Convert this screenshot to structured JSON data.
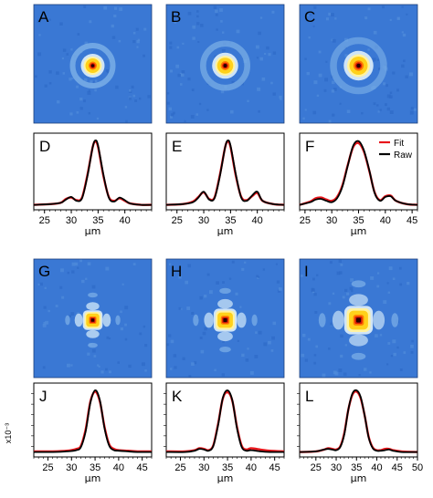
{
  "figure": {
    "y_unit_label": "x10⁻³"
  },
  "chart_data": [
    {
      "panel": "A",
      "type": "heatmap",
      "pattern": "ring",
      "core_size": 1.0,
      "ring_strength": 0.55,
      "noise": 0.35
    },
    {
      "panel": "B",
      "type": "heatmap",
      "pattern": "ring",
      "core_size": 1.1,
      "ring_strength": 0.45,
      "noise": 0.38
    },
    {
      "panel": "C",
      "type": "heatmap",
      "pattern": "ring",
      "core_size": 1.25,
      "ring_strength": 0.35,
      "noise": 0.5
    },
    {
      "panel": "D",
      "type": "line",
      "xlabel": "µm",
      "xlim": [
        23,
        45
      ],
      "xticks": [
        25,
        30,
        35,
        40
      ],
      "series": [
        {
          "name": "Fit",
          "color": "#e8161b"
        },
        {
          "name": "Raw",
          "color": "#000000"
        }
      ],
      "x": [
        23,
        26,
        28,
        29,
        30,
        31,
        32,
        33,
        34,
        34.5,
        35,
        36,
        37,
        38,
        39,
        40,
        41,
        43,
        45
      ],
      "values": {
        "Raw": [
          0.02,
          0.03,
          0.05,
          0.1,
          0.14,
          0.08,
          0.12,
          0.45,
          0.9,
          1.0,
          0.92,
          0.48,
          0.13,
          0.07,
          0.13,
          0.09,
          0.04,
          0.02,
          0.02
        ],
        "Fit": [
          0.02,
          0.03,
          0.05,
          0.11,
          0.13,
          0.09,
          0.13,
          0.47,
          0.9,
          0.98,
          0.9,
          0.46,
          0.14,
          0.08,
          0.12,
          0.08,
          0.04,
          0.02,
          0.02
        ]
      }
    },
    {
      "panel": "E",
      "type": "line",
      "xlabel": "µm",
      "xlim": [
        23,
        45
      ],
      "xticks": [
        25,
        30,
        35,
        40
      ],
      "series": [
        {
          "name": "Fit",
          "color": "#e8161b"
        },
        {
          "name": "Raw",
          "color": "#000000"
        }
      ],
      "x": [
        23,
        26,
        28,
        29,
        30,
        31,
        32,
        33,
        34,
        34.5,
        35,
        36,
        37,
        38,
        39,
        40,
        41,
        43,
        45
      ],
      "values": {
        "Raw": [
          0.02,
          0.03,
          0.06,
          0.13,
          0.22,
          0.1,
          0.12,
          0.45,
          0.9,
          1.0,
          0.92,
          0.48,
          0.13,
          0.08,
          0.16,
          0.22,
          0.08,
          0.03,
          0.02
        ],
        "Fit": [
          0.02,
          0.03,
          0.07,
          0.14,
          0.21,
          0.11,
          0.13,
          0.47,
          0.9,
          0.98,
          0.9,
          0.46,
          0.14,
          0.09,
          0.15,
          0.2,
          0.08,
          0.03,
          0.02
        ]
      }
    },
    {
      "panel": "F",
      "type": "line",
      "xlabel": "µm",
      "xlim": [
        24,
        46
      ],
      "xticks": [
        25,
        30,
        35,
        40,
        45
      ],
      "legend": {
        "entries": [
          "Fit",
          "Raw"
        ],
        "position": "top-right"
      },
      "series": [
        {
          "name": "Fit",
          "color": "#e8161b"
        },
        {
          "name": "Raw",
          "color": "#000000"
        }
      ],
      "x": [
        24,
        26,
        27,
        28,
        29,
        30,
        31,
        32,
        33,
        34,
        35,
        36,
        37,
        38,
        39,
        40,
        41,
        42,
        44,
        46
      ],
      "values": {
        "Raw": [
          0.02,
          0.06,
          0.1,
          0.11,
          0.08,
          0.06,
          0.12,
          0.3,
          0.62,
          0.92,
          0.99,
          0.85,
          0.55,
          0.2,
          0.08,
          0.14,
          0.15,
          0.08,
          0.03,
          0.02
        ],
        "Fit": [
          0.02,
          0.07,
          0.12,
          0.13,
          0.1,
          0.08,
          0.14,
          0.32,
          0.63,
          0.9,
          0.96,
          0.83,
          0.54,
          0.21,
          0.09,
          0.15,
          0.16,
          0.08,
          0.03,
          0.02
        ]
      }
    },
    {
      "panel": "G",
      "type": "heatmap",
      "pattern": "cross",
      "core_size": 0.9,
      "ring_strength": 0.5,
      "noise": 0.2
    },
    {
      "panel": "H",
      "type": "heatmap",
      "pattern": "cross",
      "core_size": 1.05,
      "ring_strength": 0.45,
      "noise": 0.25
    },
    {
      "panel": "I",
      "type": "heatmap",
      "pattern": "cross",
      "core_size": 1.3,
      "ring_strength": 0.4,
      "noise": 0.4
    },
    {
      "panel": "J",
      "type": "line",
      "xlabel": "µm",
      "xlim": [
        22,
        47
      ],
      "xticks": [
        25,
        30,
        35,
        40,
        45
      ],
      "series": [
        {
          "name": "Fit",
          "color": "#e8161b"
        },
        {
          "name": "Raw",
          "color": "#000000"
        }
      ],
      "x": [
        22,
        26,
        29,
        31,
        32,
        33,
        34,
        35,
        36,
        37,
        38,
        39,
        40,
        42,
        44,
        47
      ],
      "values": {
        "Raw": [
          0.02,
          0.02,
          0.03,
          0.05,
          0.1,
          0.35,
          0.8,
          1.0,
          0.85,
          0.4,
          0.12,
          0.05,
          0.04,
          0.03,
          0.02,
          0.02
        ],
        "Fit": [
          0.03,
          0.03,
          0.04,
          0.07,
          0.12,
          0.38,
          0.82,
          0.98,
          0.83,
          0.42,
          0.14,
          0.07,
          0.05,
          0.04,
          0.03,
          0.03
        ]
      }
    },
    {
      "panel": "K",
      "type": "line",
      "xlabel": "µm",
      "xlim": [
        22,
        47
      ],
      "xticks": [
        25,
        30,
        35,
        40,
        45
      ],
      "series": [
        {
          "name": "Fit",
          "color": "#e8161b"
        },
        {
          "name": "Raw",
          "color": "#000000"
        }
      ],
      "x": [
        22,
        26,
        28,
        29,
        30,
        31,
        32,
        33,
        34,
        35,
        36,
        37,
        38,
        39,
        40,
        42,
        44,
        47
      ],
      "values": {
        "Raw": [
          0.02,
          0.02,
          0.04,
          0.07,
          0.06,
          0.04,
          0.12,
          0.45,
          0.88,
          1.0,
          0.85,
          0.4,
          0.1,
          0.04,
          0.05,
          0.03,
          0.02,
          0.02
        ],
        "Fit": [
          0.03,
          0.03,
          0.05,
          0.08,
          0.07,
          0.05,
          0.13,
          0.47,
          0.87,
          0.97,
          0.84,
          0.42,
          0.12,
          0.06,
          0.08,
          0.06,
          0.04,
          0.03
        ]
      }
    },
    {
      "panel": "L",
      "type": "line",
      "xlabel": "µm",
      "xlim": [
        21,
        50
      ],
      "xticks": [
        25,
        30,
        35,
        40,
        45,
        50
      ],
      "series": [
        {
          "name": "Fit",
          "color": "#e8161b"
        },
        {
          "name": "Raw",
          "color": "#000000"
        }
      ],
      "x": [
        21,
        25,
        27,
        28,
        29,
        30,
        31,
        32,
        33,
        34,
        35,
        36,
        37,
        38,
        39,
        40,
        41,
        42,
        43,
        44,
        46,
        50
      ],
      "values": {
        "Raw": [
          0.02,
          0.03,
          0.06,
          0.07,
          0.06,
          0.05,
          0.1,
          0.3,
          0.7,
          0.95,
          1.0,
          0.9,
          0.6,
          0.25,
          0.08,
          0.04,
          0.04,
          0.05,
          0.06,
          0.04,
          0.02,
          0.02
        ],
        "Fit": [
          0.02,
          0.03,
          0.06,
          0.08,
          0.07,
          0.06,
          0.11,
          0.32,
          0.7,
          0.93,
          0.98,
          0.88,
          0.6,
          0.26,
          0.09,
          0.05,
          0.05,
          0.07,
          0.07,
          0.05,
          0.03,
          0.02
        ]
      }
    }
  ]
}
